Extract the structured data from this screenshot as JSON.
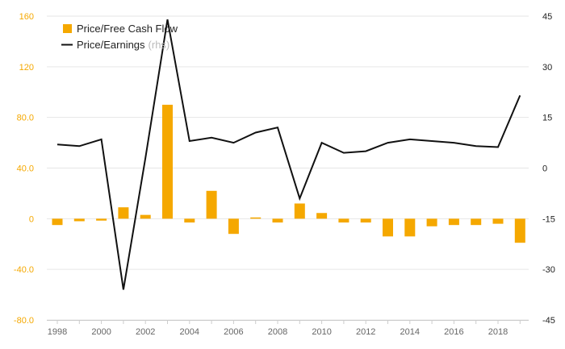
{
  "chart_data": {
    "type": "bar+line",
    "title": "",
    "x": [
      1998,
      1999,
      2000,
      2001,
      2002,
      2003,
      2004,
      2005,
      2006,
      2007,
      2008,
      2009,
      2010,
      2011,
      2012,
      2013,
      2014,
      2015,
      2016,
      2017,
      2018,
      2019
    ],
    "x_tick_labels": [
      "1998",
      "2000",
      "2002",
      "2004",
      "2006",
      "2008",
      "2010",
      "2012",
      "2014",
      "2016",
      "2018"
    ],
    "series": [
      {
        "name": "Price/Free Cash Flow",
        "type": "bar",
        "axis": "left",
        "color": "#f5a800",
        "values": [
          -5,
          -2,
          -1.5,
          9,
          3,
          90,
          -3,
          22,
          -12,
          1,
          -3,
          12,
          4.5,
          -3,
          -3,
          -14,
          -14,
          -6,
          -5,
          -5,
          -4,
          -19
        ]
      },
      {
        "name": "Price/Earnings",
        "name_suffix": "(rhs)",
        "type": "line",
        "axis": "right",
        "color": "#111111",
        "values": [
          7,
          6.5,
          8.5,
          -36,
          3,
          44,
          8,
          9,
          7.5,
          10.5,
          12,
          -9,
          7.5,
          4.5,
          5,
          7.5,
          8.5,
          8,
          7.5,
          6.5,
          6.2,
          21.5
        ]
      }
    ],
    "y_left": {
      "ylim": [
        -80,
        160
      ],
      "ticks": [
        160,
        120,
        80,
        40,
        0,
        -40,
        -80
      ],
      "tick_labels": [
        "160",
        "120",
        "80.0",
        "40.0",
        "0",
        "-40.0",
        "-80.0"
      ],
      "label_color": "#f5a800"
    },
    "y_right": {
      "ylim": [
        -45,
        45
      ],
      "ticks": [
        45,
        30,
        15,
        0,
        -15,
        -30,
        -45
      ],
      "tick_labels": [
        "45",
        "30",
        "15",
        "0",
        "-15",
        "-30",
        "-45"
      ]
    },
    "grid": true,
    "legend_position": "top-left"
  }
}
